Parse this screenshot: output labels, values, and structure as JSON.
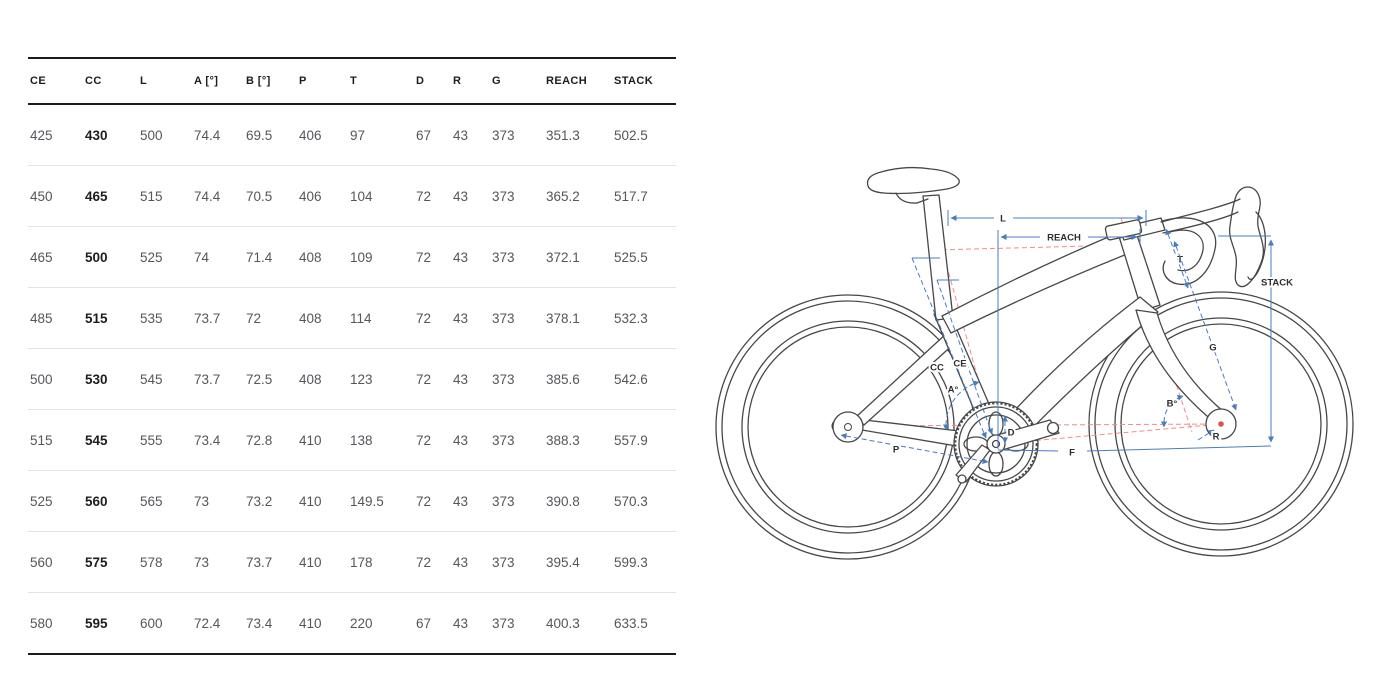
{
  "table": {
    "columns": [
      "CE",
      "CC",
      "L",
      "A [°]",
      "B [°]",
      "P",
      "T",
      "D",
      "R",
      "G",
      "REACH",
      "STACK"
    ],
    "rows": [
      [
        "425",
        "430",
        "500",
        "74.4",
        "69.5",
        "406",
        "97",
        "67",
        "43",
        "373",
        "351.3",
        "502.5"
      ],
      [
        "450",
        "465",
        "515",
        "74.4",
        "70.5",
        "406",
        "104",
        "72",
        "43",
        "373",
        "365.2",
        "517.7"
      ],
      [
        "465",
        "500",
        "525",
        "74",
        "71.4",
        "408",
        "109",
        "72",
        "43",
        "373",
        "372.1",
        "525.5"
      ],
      [
        "485",
        "515",
        "535",
        "73.7",
        "72",
        "408",
        "114",
        "72",
        "43",
        "373",
        "378.1",
        "532.3"
      ],
      [
        "500",
        "530",
        "545",
        "73.7",
        "72.5",
        "408",
        "123",
        "72",
        "43",
        "373",
        "385.6",
        "542.6"
      ],
      [
        "515",
        "545",
        "555",
        "73.4",
        "72.8",
        "410",
        "138",
        "72",
        "43",
        "373",
        "388.3",
        "557.9"
      ],
      [
        "525",
        "560",
        "565",
        "73",
        "73.2",
        "410",
        "149.5",
        "72",
        "43",
        "373",
        "390.8",
        "570.3"
      ],
      [
        "560",
        "575",
        "578",
        "73",
        "73.7",
        "410",
        "178",
        "72",
        "43",
        "373",
        "395.4",
        "599.3"
      ],
      [
        "580",
        "595",
        "600",
        "72.4",
        "73.4",
        "410",
        "220",
        "67",
        "43",
        "373",
        "400.3",
        "633.5"
      ]
    ],
    "bold_column_index": 1
  },
  "diagram": {
    "labels": {
      "l": "L",
      "reach": "REACH",
      "stack": "STACK",
      "t": "T",
      "g": "G",
      "cc": "CC",
      "ce": "CE",
      "a": "A°",
      "b": "B°",
      "p": "P",
      "d": "D",
      "f": "F",
      "r": "R"
    },
    "colors": {
      "dimension_blue": "#4a7cc0",
      "reference_red": "#f28b8b",
      "line_art": "#474747"
    }
  }
}
